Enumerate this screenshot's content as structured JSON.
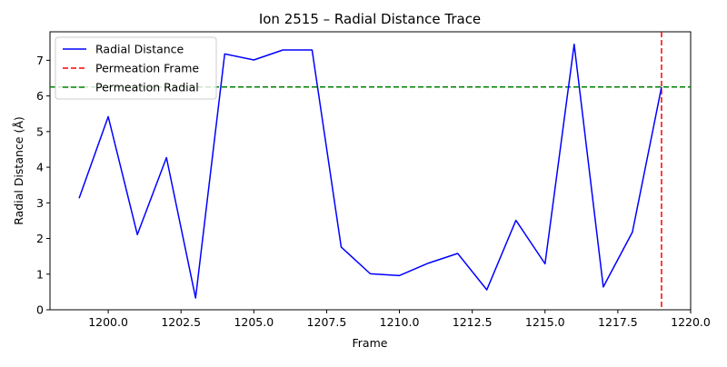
{
  "chart_data": {
    "type": "line",
    "title": "Ion 2515 – Radial Distance Trace",
    "xlabel": "Frame",
    "ylabel": "Radial Distance (Å)",
    "xlim": [
      1198,
      1220
    ],
    "ylim": [
      0,
      7.8
    ],
    "x_ticks": [
      1200.0,
      1202.5,
      1205.0,
      1207.5,
      1210.0,
      1212.5,
      1215.0,
      1217.5,
      1220.0
    ],
    "x_tick_labels": [
      "1200.0",
      "1202.5",
      "1205.0",
      "1207.5",
      "1210.0",
      "1212.5",
      "1215.0",
      "1217.5",
      "1220.0"
    ],
    "y_ticks": [
      0,
      1,
      2,
      3,
      4,
      5,
      6,
      7
    ],
    "y_tick_labels": [
      "0",
      "1",
      "2",
      "3",
      "4",
      "5",
      "6",
      "7"
    ],
    "grid": false,
    "legend_position": "top-left",
    "series": [
      {
        "name": "Radial Distance",
        "color": "#0000ff",
        "style": "solid",
        "x": [
          1199,
          1200,
          1201,
          1202,
          1203,
          1204,
          1205,
          1206,
          1207,
          1208,
          1209,
          1210,
          1211,
          1212,
          1213,
          1214,
          1215,
          1216,
          1217,
          1218,
          1219
        ],
        "y": [
          3.13,
          5.42,
          2.11,
          4.27,
          0.33,
          7.18,
          7.01,
          7.29,
          7.29,
          1.76,
          1.01,
          0.96,
          1.31,
          1.58,
          0.56,
          2.51,
          1.29,
          7.45,
          0.64,
          2.18,
          6.25
        ]
      }
    ],
    "reference_lines": [
      {
        "name": "Permeation Frame",
        "orientation": "vertical",
        "value": 1219,
        "color": "#ff0000",
        "style": "dashed"
      },
      {
        "name": "Permeation Radial",
        "orientation": "horizontal",
        "value": 6.25,
        "color": "#008000",
        "style": "dashed"
      }
    ]
  }
}
